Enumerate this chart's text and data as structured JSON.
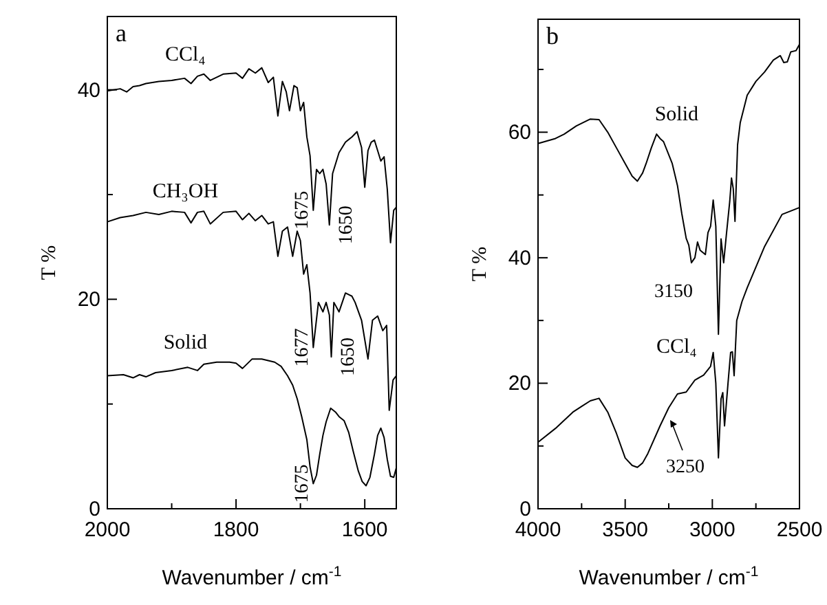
{
  "chart_data": [
    {
      "type": "line",
      "xlabel": "Wavenumber / cm$^{-1}$",
      "ylabel": "T %",
      "xlim": [
        2000,
        1551
      ],
      "ylim": [
        0,
        47
      ],
      "xticks": [
        2000,
        {
          "value": 1900,
          "label": null
        },
        1800,
        {
          "value": 1700,
          "label": null
        },
        1600
      ],
      "yticks": [
        0,
        {
          "value": 10,
          "label": null
        },
        20,
        {
          "value": 30,
          "label": null
        },
        40
      ],
      "annotations": [
        "a",
        {
          "text": "1675",
          "x": 1680,
          "y": 28.5
        },
        {
          "text": "1650",
          "x": 1655,
          "y": 27.1
        },
        {
          "text": "1677",
          "x": 1680,
          "y": 15.4
        },
        {
          "text": "1650",
          "x": 1652,
          "y": 14.5
        },
        {
          "text": "1675",
          "x": 1680,
          "y": 2.4
        }
      ],
      "series": [
        {
          "name": "CCl₄",
          "color": "#000000",
          "x": [
            2000,
            1980,
            1970,
            1960,
            1950,
            1940,
            1920,
            1900,
            1880,
            1870,
            1860,
            1850,
            1840,
            1820,
            1800,
            1790,
            1780,
            1770,
            1760,
            1750,
            1742,
            1735,
            1728,
            1722,
            1717,
            1710,
            1705,
            1700,
            1695,
            1690,
            1685,
            1680,
            1675,
            1670,
            1665,
            1660,
            1655,
            1650,
            1645,
            1640,
            1630,
            1620,
            1612,
            1605,
            1600,
            1595,
            1590,
            1585,
            1580,
            1575,
            1570,
            1565,
            1560,
            1555,
            1551
          ],
          "values": [
            39.9,
            40.1,
            39.8,
            40.3,
            40.4,
            40.6,
            40.8,
            40.9,
            41.1,
            40.6,
            41.3,
            41.5,
            40.9,
            41.5,
            41.6,
            41.1,
            42,
            41.6,
            42.1,
            40.7,
            41.2,
            37.5,
            40.8,
            39.8,
            38,
            40.4,
            40.2,
            38,
            38.8,
            35.5,
            33.7,
            28.5,
            32.4,
            32,
            32.4,
            31,
            27.1,
            32,
            33,
            34,
            35,
            35.5,
            36,
            34.5,
            30.7,
            34.2,
            35,
            35.2,
            34.2,
            33.2,
            33.6,
            30.5,
            25.4,
            28.5,
            28.8
          ]
        },
        {
          "name": "CH₃OH",
          "color": "#000000",
          "x": [
            2000,
            1980,
            1960,
            1940,
            1920,
            1900,
            1880,
            1870,
            1860,
            1850,
            1840,
            1820,
            1800,
            1790,
            1780,
            1770,
            1760,
            1750,
            1742,
            1735,
            1728,
            1720,
            1712,
            1705,
            1700,
            1695,
            1690,
            1685,
            1680,
            1672,
            1665,
            1660,
            1655,
            1652,
            1648,
            1640,
            1630,
            1620,
            1615,
            1605,
            1595,
            1588,
            1580,
            1572,
            1566,
            1562,
            1556,
            1551
          ],
          "values": [
            27.4,
            27.8,
            28,
            28.3,
            28.1,
            28.4,
            28.3,
            27.3,
            28.3,
            28.4,
            27.2,
            28.3,
            28.4,
            27.6,
            28.2,
            27.5,
            28,
            27.2,
            27.4,
            24.1,
            26.5,
            26.9,
            24.1,
            26.5,
            25.6,
            22.4,
            23.3,
            20.6,
            15.4,
            19.7,
            18.8,
            19.7,
            18.5,
            14.5,
            19.7,
            18.8,
            20.6,
            20.3,
            19.7,
            18,
            14.3,
            18,
            18.4,
            17,
            17.5,
            9.4,
            12.3,
            12.7
          ]
        },
        {
          "name": "Solid",
          "color": "#000000",
          "x": [
            2000,
            1975,
            1960,
            1950,
            1940,
            1925,
            1900,
            1875,
            1860,
            1850,
            1830,
            1810,
            1800,
            1790,
            1775,
            1760,
            1740,
            1730,
            1720,
            1712,
            1705,
            1698,
            1690,
            1685,
            1680,
            1675,
            1670,
            1665,
            1660,
            1653,
            1645,
            1640,
            1632,
            1625,
            1618,
            1610,
            1604,
            1598,
            1592,
            1585,
            1580,
            1575,
            1570,
            1565,
            1560,
            1555,
            1551
          ],
          "values": [
            12.7,
            12.8,
            12.5,
            12.8,
            12.6,
            13,
            13.2,
            13.5,
            13.2,
            13.8,
            14,
            14,
            13.9,
            13.4,
            14.3,
            14.3,
            14,
            13.6,
            12.7,
            11.8,
            10.5,
            8.8,
            6.6,
            4,
            2.4,
            3.2,
            5.2,
            7,
            8.3,
            9.6,
            9.2,
            8.8,
            8.4,
            7.3,
            5.5,
            3.6,
            2.6,
            2.2,
            3,
            5.2,
            7,
            7.7,
            6.8,
            4.7,
            3.1,
            3,
            3.9
          ]
        }
      ]
    },
    {
      "type": "line",
      "xlabel": "Wavenumber / cm$^{-1}$",
      "ylabel": "T %",
      "xlim": [
        4000,
        2500
      ],
      "ylim": [
        0,
        78
      ],
      "xticks": [
        4000,
        {
          "value": 3750,
          "label": null
        },
        3500,
        {
          "value": 3250,
          "label": null
        },
        3000,
        {
          "value": 2750,
          "label": null
        },
        2500
      ],
      "yticks": [
        0,
        {
          "value": 10,
          "label": null
        },
        20,
        {
          "value": 30,
          "label": null
        },
        40,
        {
          "value": 50,
          "label": null
        },
        60,
        {
          "value": 70,
          "label": null
        }
      ],
      "annotations": [
        "b",
        {
          "text": "3150",
          "x": 3120,
          "y": 39.2
        },
        {
          "text": "3250",
          "x": 3250,
          "y": 16.1
        }
      ],
      "series": [
        {
          "name": "Solid",
          "color": "#000000",
          "x": [
            4000,
            3900,
            3850,
            3780,
            3700,
            3650,
            3600,
            3550,
            3500,
            3460,
            3430,
            3400,
            3380,
            3350,
            3320,
            3300,
            3280,
            3250,
            3230,
            3200,
            3175,
            3150,
            3135,
            3120,
            3100,
            3085,
            3070,
            3040,
            3025,
            3010,
            2995,
            2980,
            2965,
            2950,
            2935,
            2920,
            2900,
            2890,
            2880,
            2870,
            2855,
            2840,
            2800,
            2750,
            2700,
            2650,
            2610,
            2590,
            2570,
            2550,
            2520,
            2500
          ],
          "values": [
            58.2,
            59,
            59.7,
            61,
            62.1,
            62,
            60,
            57.5,
            55,
            53,
            52.2,
            53.5,
            55,
            57.5,
            59.7,
            59,
            58.5,
            56.4,
            55,
            51.5,
            47,
            43.1,
            42,
            39.2,
            40,
            42.5,
            41.2,
            40.5,
            44,
            45,
            49.2,
            45,
            27.8,
            43,
            39.2,
            43.5,
            49,
            52.7,
            51,
            45.8,
            58,
            61.5,
            65.9,
            68.1,
            69.6,
            71.5,
            72.2,
            71.1,
            71.2,
            72.8,
            73,
            74
          ]
        },
        {
          "name": "CCl₄",
          "color": "#000000",
          "x": [
            4000,
            3900,
            3800,
            3750,
            3700,
            3650,
            3600,
            3550,
            3500,
            3460,
            3430,
            3400,
            3370,
            3300,
            3250,
            3200,
            3150,
            3100,
            3050,
            3010,
            2995,
            2980,
            2965,
            2950,
            2940,
            2930,
            2910,
            2895,
            2885,
            2875,
            2860,
            2830,
            2800,
            2700,
            2600,
            2500
          ],
          "values": [
            10.6,
            12.8,
            15.4,
            16.3,
            17.2,
            17.6,
            15.4,
            12,
            8.1,
            6.9,
            6.6,
            7.3,
            8.8,
            13.2,
            16.1,
            18.3,
            18.6,
            20.5,
            21.3,
            22.7,
            24.9,
            20,
            8.1,
            17.5,
            18.5,
            13.2,
            20,
            24.9,
            25,
            21.2,
            30,
            33,
            35.2,
            41.8,
            46.9,
            48
          ]
        }
      ]
    }
  ]
}
